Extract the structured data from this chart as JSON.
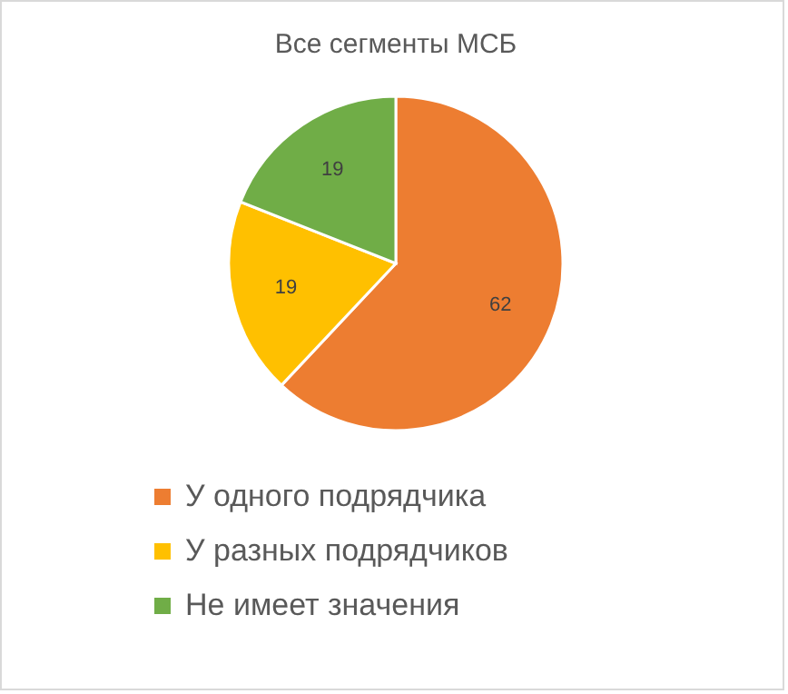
{
  "chart_data": {
    "type": "pie",
    "title": "Все сегменты МСБ",
    "categories": [
      "У одного подрядчика",
      "У разных подрядчиков",
      "Не имеет значения"
    ],
    "values": [
      62,
      19,
      19
    ],
    "colors": [
      "#ed7d31",
      "#ffc000",
      "#70ad47"
    ],
    "data_labels": true,
    "legend": "bottom"
  }
}
